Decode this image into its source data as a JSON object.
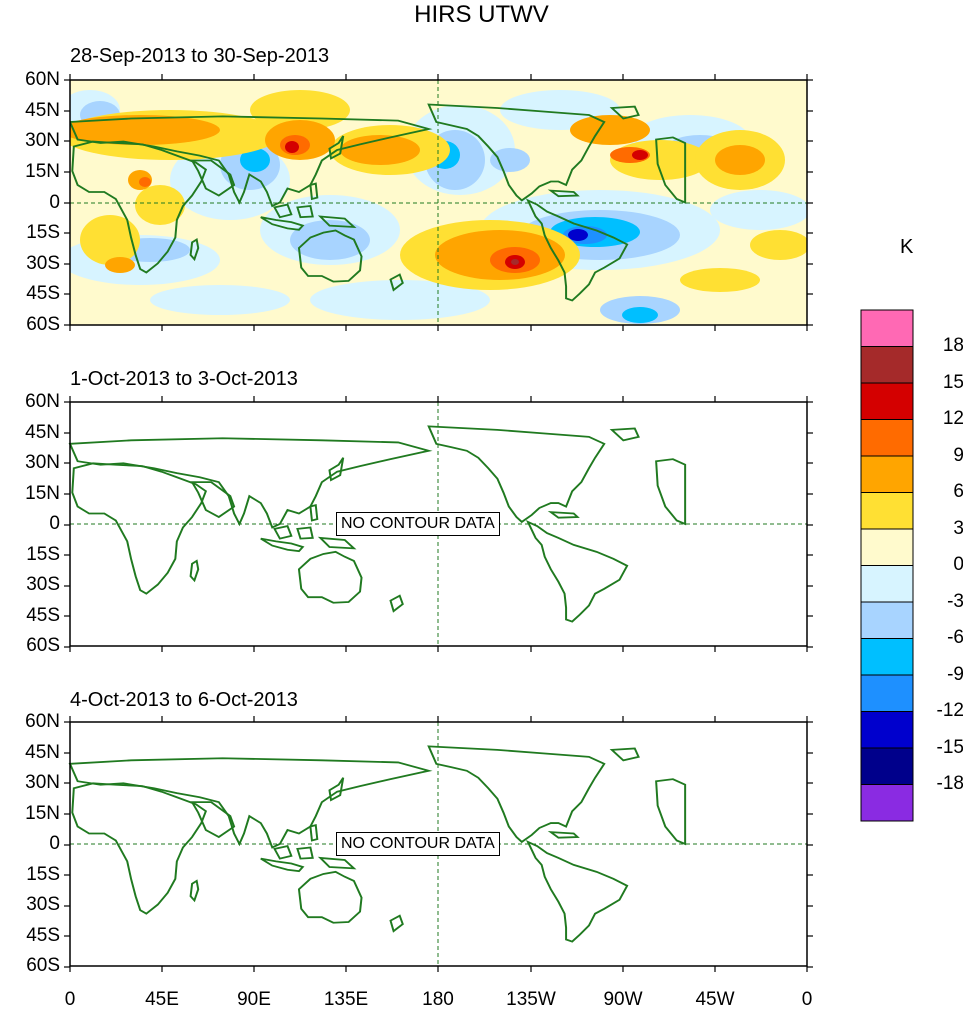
{
  "title": "HIRS UTWV",
  "panels": [
    {
      "label": "28-Sep-2013 to 30-Sep-2013",
      "status": ""
    },
    {
      "label": "1-Oct-2013 to 3-Oct-2013",
      "status": "NO CONTOUR DATA"
    },
    {
      "label": "4-Oct-2013 to 6-Oct-2013",
      "status": "NO CONTOUR DATA"
    }
  ],
  "lat_labels": [
    "60N",
    "45N",
    "30N",
    "15N",
    "0",
    "15S",
    "30S",
    "45S",
    "60S"
  ],
  "lon_labels": [
    "0",
    "45E",
    "90E",
    "135E",
    "180",
    "135W",
    "90W",
    "45W",
    "0"
  ],
  "colorbar": {
    "unit": "K",
    "labels": [
      "18",
      "15",
      "12",
      "9",
      "6",
      "3",
      "0",
      "-3",
      "-6",
      "-9",
      "-12",
      "-15",
      "-18"
    ],
    "colors": [
      "#ff69b4",
      "#a52a2a",
      "#d40000",
      "#ff6b00",
      "#ffa500",
      "#ffe033",
      "#fffacd",
      "#d7f4ff",
      "#a8d4ff",
      "#00bfff",
      "#1e90ff",
      "#0000cd",
      "#00008b",
      "#8a2be2"
    ]
  },
  "colors": {
    "coast": "#207a20",
    "equator": "#207a20"
  }
}
